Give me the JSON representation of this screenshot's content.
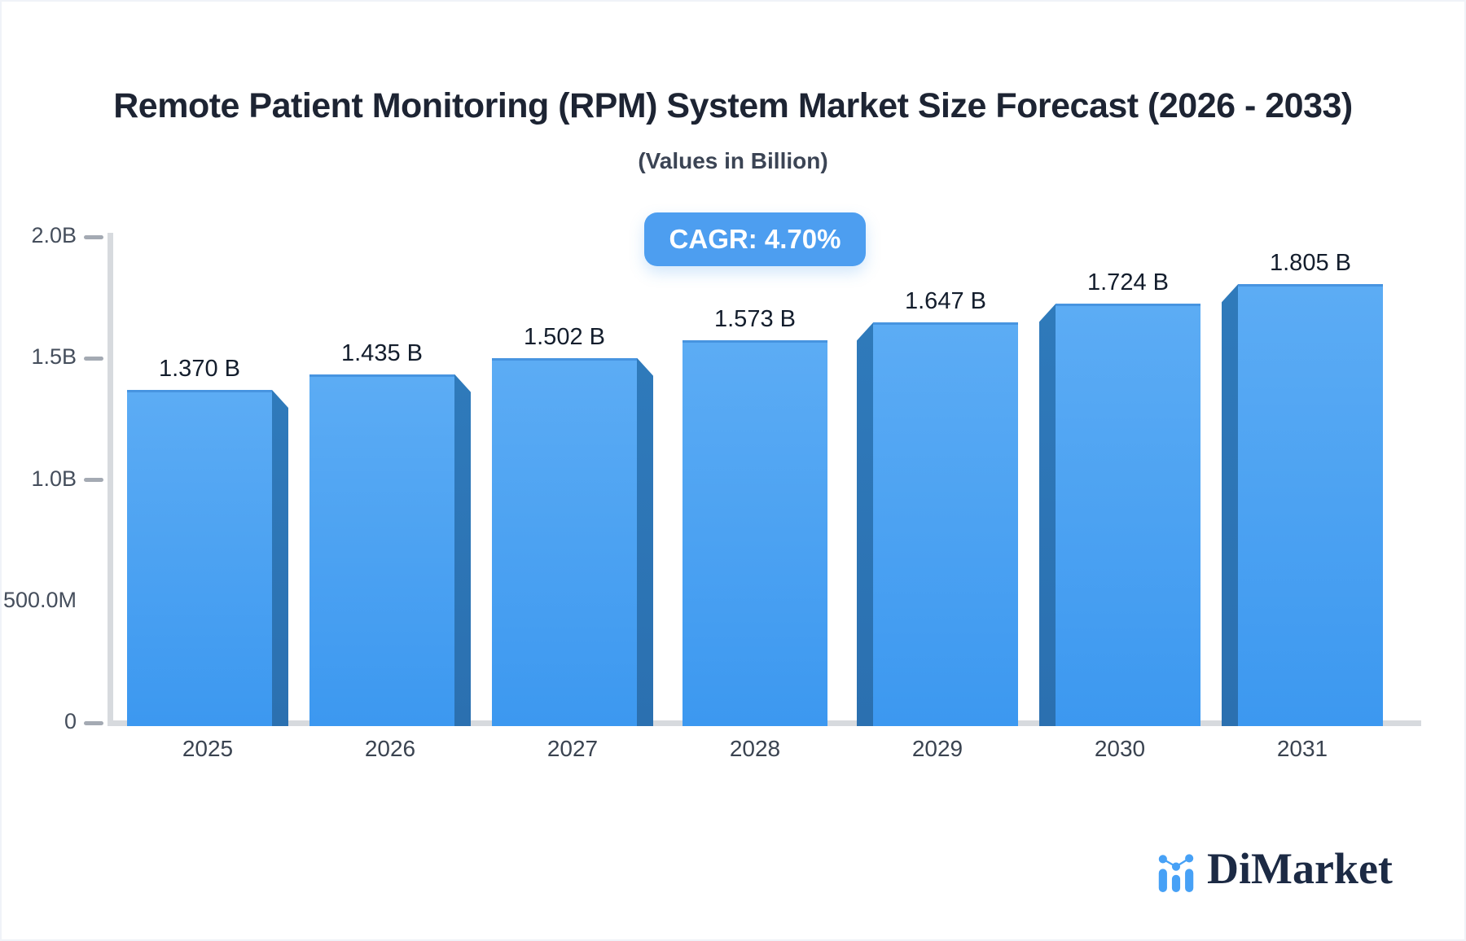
{
  "badge": {
    "label": "CAGR: 4.70%"
  },
  "brand": {
    "name": "DiMarket",
    "icon": "bar-line-chart-logo-icon"
  },
  "colors": {
    "bar_face_top": "#5cacf4",
    "bar_face_bottom": "#3c98f0",
    "bar_face_edge": "#4794e0",
    "bar_side": "#2e75b6",
    "badge_bg": "#4d9ef0",
    "badge_text": "#ffffff",
    "axis_line": "#d7dade",
    "tick_dash": "#a4aab3",
    "title_text": "#1d2433",
    "subtitle_text": "#3b4454",
    "axis_label_text": "#454e5c",
    "value_label_text": "#131d2c",
    "logo_navy": "#1c2a44",
    "logo_blue": "#47a1f6"
  },
  "chart_data": {
    "type": "bar",
    "title": "Remote Patient Monitoring (RPM) System Market Size Forecast (2026 - 2033)",
    "subtitle": "(Values in Billion)",
    "annotation": "CAGR: 4.70%",
    "unit": "billion",
    "categories": [
      "2025",
      "2026",
      "2027",
      "2028",
      "2029",
      "2030",
      "2031"
    ],
    "values": [
      1.37,
      1.435,
      1.502,
      1.573,
      1.647,
      1.724,
      1.805
    ],
    "value_labels": [
      "1.370 B",
      "1.435 B",
      "1.502 B",
      "1.573 B",
      "1.647 B",
      "1.724 B",
      "1.805 B"
    ],
    "ylim": [
      0,
      2.0
    ],
    "yticks": [
      {
        "label": "2.0B",
        "value": 2.0,
        "dash": true
      },
      {
        "label": "1.5B",
        "value": 1.5,
        "dash": true
      },
      {
        "label": "1.0B",
        "value": 1.0,
        "dash": true
      },
      {
        "label": "500.0M",
        "value": 0.5,
        "dash": false
      },
      {
        "label": "0",
        "value": 0.0,
        "dash": true
      }
    ],
    "grid": false,
    "legend": null,
    "bar_effect": "3d-bevel"
  }
}
